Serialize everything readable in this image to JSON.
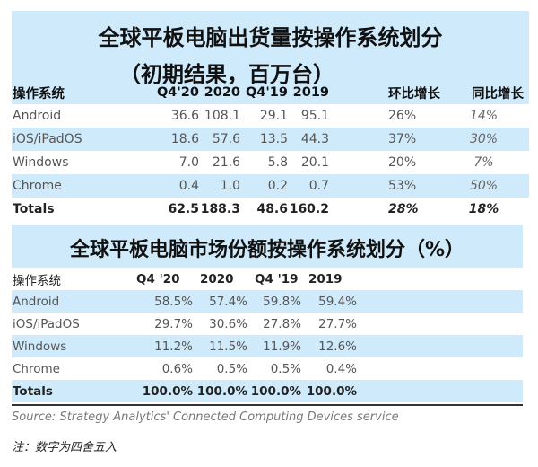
{
  "shipments": {
    "title": "全球平板电脑出货量按操作系统划分",
    "subtitle": "（初期结果，百万台）",
    "headers": [
      "操作系统",
      "Q4'20",
      "2020",
      "Q4'19",
      "2019",
      "环比增长",
      "同比增长"
    ],
    "rows": [
      {
        "os": "Android",
        "q4_20": "36.6",
        "y2020": "108.1",
        "q4_19": "29.1",
        "y2019": "95.1",
        "qoq": "26%",
        "yoy": "14%"
      },
      {
        "os": "iOS/iPadOS",
        "q4_20": "18.6",
        "y2020": "57.6",
        "q4_19": "13.5",
        "y2019": "44.3",
        "qoq": "37%",
        "yoy": "30%"
      },
      {
        "os": "Windows",
        "q4_20": "7.0",
        "y2020": "21.6",
        "q4_19": "5.8",
        "y2019": "20.1",
        "qoq": "20%",
        "yoy": "7%"
      },
      {
        "os": "Chrome",
        "q4_20": "0.4",
        "y2020": "1.0",
        "q4_19": "0.2",
        "y2019": "0.7",
        "qoq": "53%",
        "yoy": "50%"
      }
    ],
    "totals": {
      "os": "Totals",
      "q4_20": "62.5",
      "y2020": "188.3",
      "q4_19": "48.6",
      "y2019": "160.2",
      "qoq": "28%",
      "yoy": "18%"
    }
  },
  "share": {
    "title": "全球平板电脑市场份额按操作系统划分（%）",
    "headers": [
      "操作系统",
      "Q4 '20",
      "2020",
      "Q4 '19",
      "2019"
    ],
    "rows": [
      {
        "os": "Android",
        "q4_20": "58.5%",
        "y2020": "57.4%",
        "q4_19": "59.8%",
        "y2019": "59.4%"
      },
      {
        "os": "iOS/iPadOS",
        "q4_20": "29.7%",
        "y2020": "30.6%",
        "q4_19": "27.8%",
        "y2019": "27.7%"
      },
      {
        "os": "Windows",
        "q4_20": "11.2%",
        "y2020": "11.5%",
        "q4_19": "11.9%",
        "y2019": "12.6%"
      },
      {
        "os": "Chrome",
        "q4_20": "0.6%",
        "y2020": "0.5%",
        "q4_19": "0.5%",
        "y2019": "0.4%"
      }
    ],
    "totals": {
      "os": "Totals",
      "q4_20": "100.0%",
      "y2020": "100.0%",
      "q4_19": "100.0%",
      "y2019": "100.0%"
    }
  },
  "source": "Source: Strategy Analytics' Connected Computing Devices service",
  "note": "注：数字为四舍五入",
  "colors": {
    "row_highlight": "#cfeafb",
    "rule": "#333333"
  }
}
